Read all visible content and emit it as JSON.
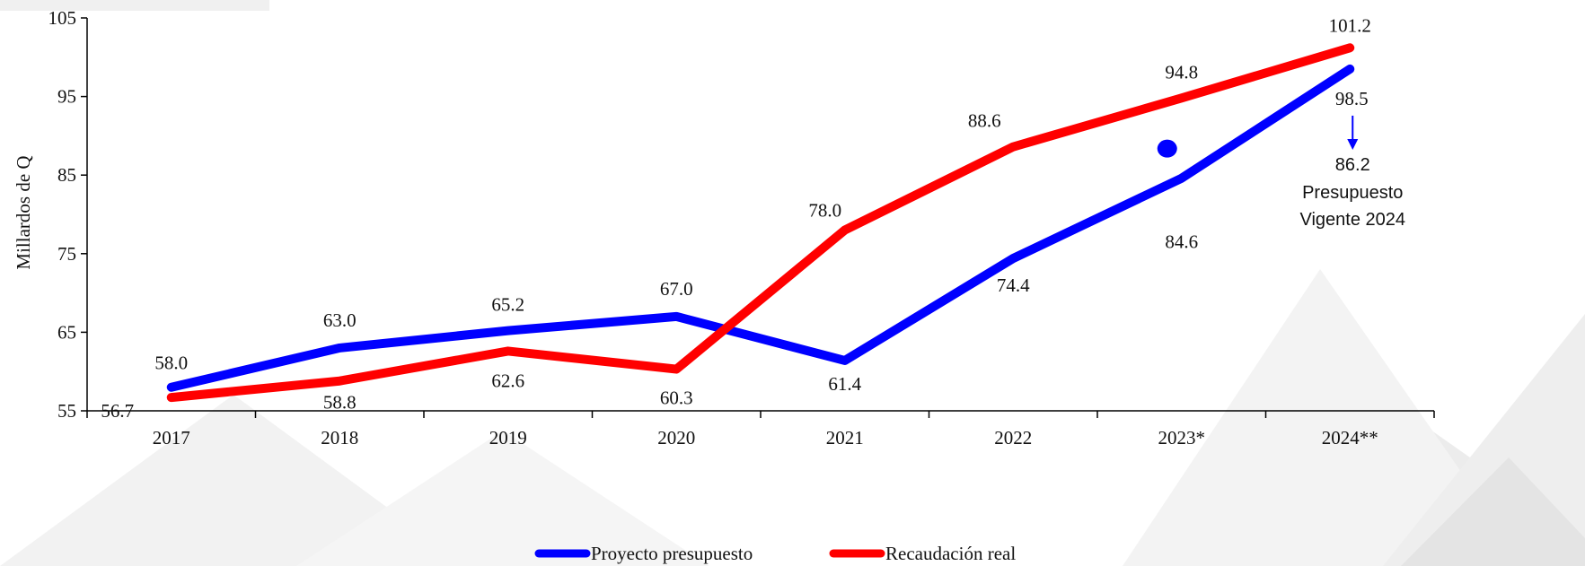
{
  "chart_data": {
    "type": "line",
    "ylabel": "Millardos de Q",
    "ylim": [
      55,
      105
    ],
    "yticks": [
      55,
      65,
      75,
      85,
      95,
      105
    ],
    "categories": [
      "2017",
      "2018",
      "2019",
      "2020",
      "2021",
      "2022",
      "2023*",
      "2024**"
    ],
    "series": [
      {
        "name": "Proyecto presupuesto",
        "color": "#0000ff",
        "values": [
          58.0,
          63.0,
          65.2,
          67.0,
          61.4,
          74.4,
          84.6,
          98.5
        ],
        "labels": [
          "58.0",
          "63.0",
          "65.2",
          "67.0",
          "61.4",
          "74.4",
          "84.6",
          "98.5"
        ]
      },
      {
        "name": "Recaudación real",
        "color": "#ff0000",
        "values": [
          56.7,
          58.8,
          62.6,
          60.3,
          78.0,
          88.6,
          94.8,
          101.2
        ],
        "labels": [
          "56.7",
          "58.8",
          "62.6",
          "60.3",
          "78.0",
          "88.6",
          "94.8",
          "101.2"
        ]
      }
    ],
    "extra_point": {
      "category": "2023*",
      "value": 88.6,
      "color": "#0000ff"
    },
    "annotation": {
      "category": "2024**",
      "value": "86.2",
      "lines": [
        "Presupuesto",
        "Vigente 2024"
      ],
      "arrow_color": "#0000ff"
    },
    "grid": false,
    "legend": "bottom-center"
  }
}
